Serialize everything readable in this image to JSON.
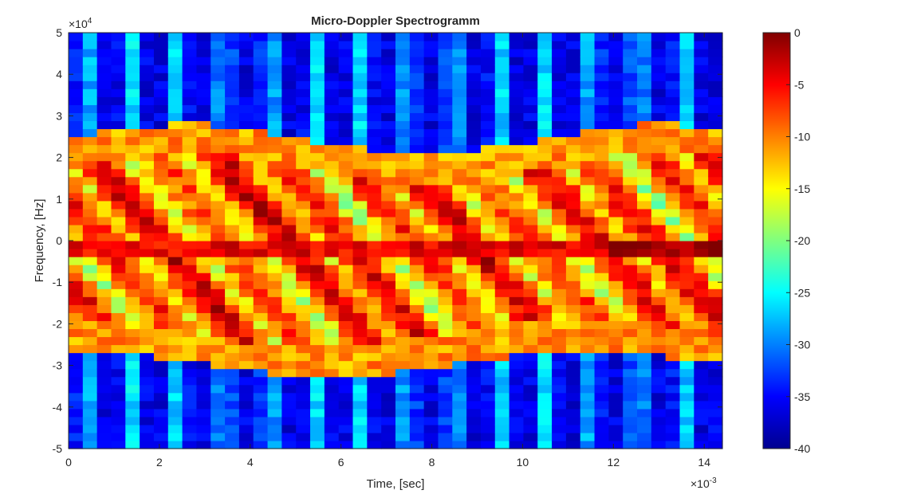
{
  "chart_data": {
    "type": "heatmap",
    "title": "Micro-Doppler Spectrogramm",
    "xlabel": "Time, [sec]",
    "ylabel": "Frequency, [Hz]",
    "x_exponent_label": "×10",
    "x_exponent_power": "-3",
    "y_exponent_label": "×10",
    "y_exponent_power": "4",
    "xlim": [
      0,
      14.4
    ],
    "ylim": [
      -5,
      5
    ],
    "x_ticks": [
      0,
      2,
      4,
      6,
      8,
      10,
      12,
      14
    ],
    "x_tick_labels": [
      "0",
      "2",
      "4",
      "6",
      "8",
      "10",
      "12",
      "14"
    ],
    "y_ticks": [
      5,
      4,
      3,
      2,
      1,
      0,
      -1,
      -2,
      -3,
      -4,
      -5
    ],
    "y_tick_labels": [
      "5",
      "4",
      "3",
      "2",
      "1",
      "0",
      "-1",
      "-2",
      "-3",
      "-4",
      "-5"
    ],
    "colorbar": {
      "colormap": "jet",
      "clim": [
        -40,
        0
      ],
      "ticks": [
        0,
        -5,
        -10,
        -15,
        -20,
        -25,
        -30,
        -35,
        -40
      ],
      "tick_labels": [
        "0",
        "-5",
        "-10",
        "-15",
        "-20",
        "-25",
        "-30",
        "-35",
        "-40"
      ]
    },
    "time_bins": 46,
    "frequency_bins": 52,
    "dominant_features": [
      {
        "label": "strong band near 0 Hz",
        "time_range": [
          0,
          14.4
        ],
        "frequency": -0.2,
        "level_db": -3
      },
      {
        "label": "upper envelope",
        "time_range": [
          0,
          14.4
        ],
        "frequency_range": [
          1.8,
          2.4
        ],
        "level_db": -12
      },
      {
        "label": "lower envelope",
        "time_range": [
          0,
          14.4
        ],
        "frequency_range": [
          -2.8,
          -2.3
        ],
        "level_db": -12
      }
    ]
  }
}
